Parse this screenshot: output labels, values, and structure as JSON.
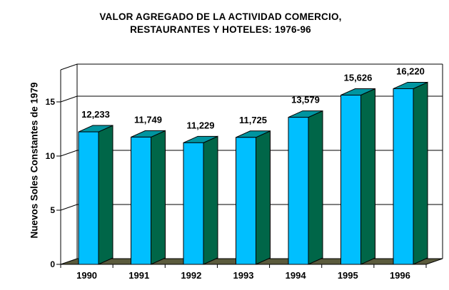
{
  "title": {
    "line1": "VALOR AGREGADO DE LA ACTIVIDAD COMERCIO,",
    "line2": "RESTAURANTES Y HOTELES: 1976-96"
  },
  "y_axis": {
    "title": "Nuevos Soles Constantes de 1979",
    "ticks": [
      "0",
      "5",
      "10",
      "15"
    ]
  },
  "chart_data": {
    "type": "bar",
    "style": "3d-bar",
    "title": "VALOR AGREGADO DE LA ACTIVIDAD COMERCIO, RESTAURANTES Y HOTELES: 1976-96",
    "categories": [
      "1990",
      "1991",
      "1992",
      "1993",
      "1994",
      "1995",
      "1996"
    ],
    "values": [
      12233,
      11749,
      11229,
      11725,
      13579,
      15626,
      16220
    ],
    "value_labels": [
      "12,233",
      "11,749",
      "11,229",
      "11,725",
      "13,579",
      "15,626",
      "16,220"
    ],
    "xlabel": "",
    "ylabel": "Nuevos Soles Constantes de 1979",
    "y_ticks": [
      0,
      5,
      10,
      15
    ],
    "y_tick_scale": 1000,
    "ylim": [
      0,
      18000
    ],
    "grid": "horizontal",
    "legend": "none"
  },
  "colors": {
    "bar_front": "#00BFFF",
    "bar_top": "#0095A0",
    "bar_side": "#006648",
    "floor": "#5A5A3C",
    "outline": "#000000",
    "background": "#FFFFFF",
    "text": "#000000"
  }
}
